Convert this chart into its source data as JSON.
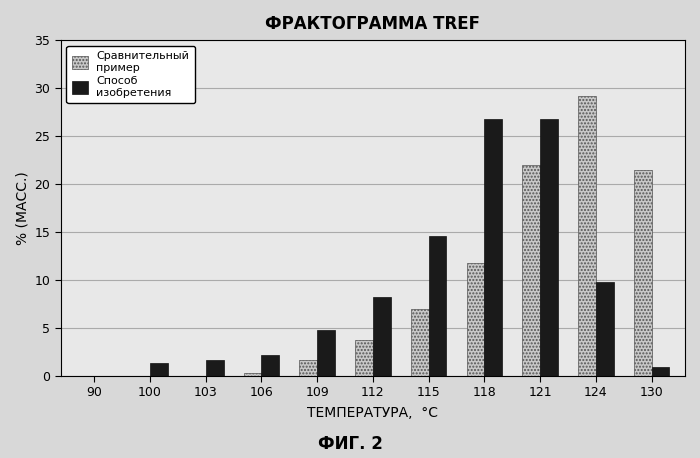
{
  "title": "ФРАКТОГРАММА TREF",
  "xlabel": "ТЕМПЕРАТУРА,  °C",
  "ylabel": "% (МАСС.)",
  "footnote": "ФИГ. 2",
  "categories": [
    "90",
    "100",
    "103",
    "106",
    "109",
    "112",
    "115",
    "118",
    "121",
    "124",
    "130"
  ],
  "comparative": [
    0.0,
    0.0,
    0.0,
    0.3,
    1.6,
    3.7,
    7.0,
    11.8,
    22.0,
    29.2,
    21.5
  ],
  "invention": [
    0.0,
    1.3,
    1.6,
    2.2,
    4.8,
    8.2,
    14.6,
    26.8,
    26.8,
    9.8,
    0.9
  ],
  "ylim": [
    0,
    35
  ],
  "yticks": [
    0,
    5,
    10,
    15,
    20,
    25,
    30,
    35
  ],
  "legend_label1": "Сравнительный\nпример",
  "legend_label2": "Способ\nизобретения",
  "bar_width": 0.32,
  "color_comparative": "#c8c8c8",
  "color_invention": "#1a1a1a",
  "hatch_comparative": ".....",
  "bg_color": "#d8d8d8",
  "plot_bg": "#e8e8e8",
  "grid_color": "#aaaaaa"
}
